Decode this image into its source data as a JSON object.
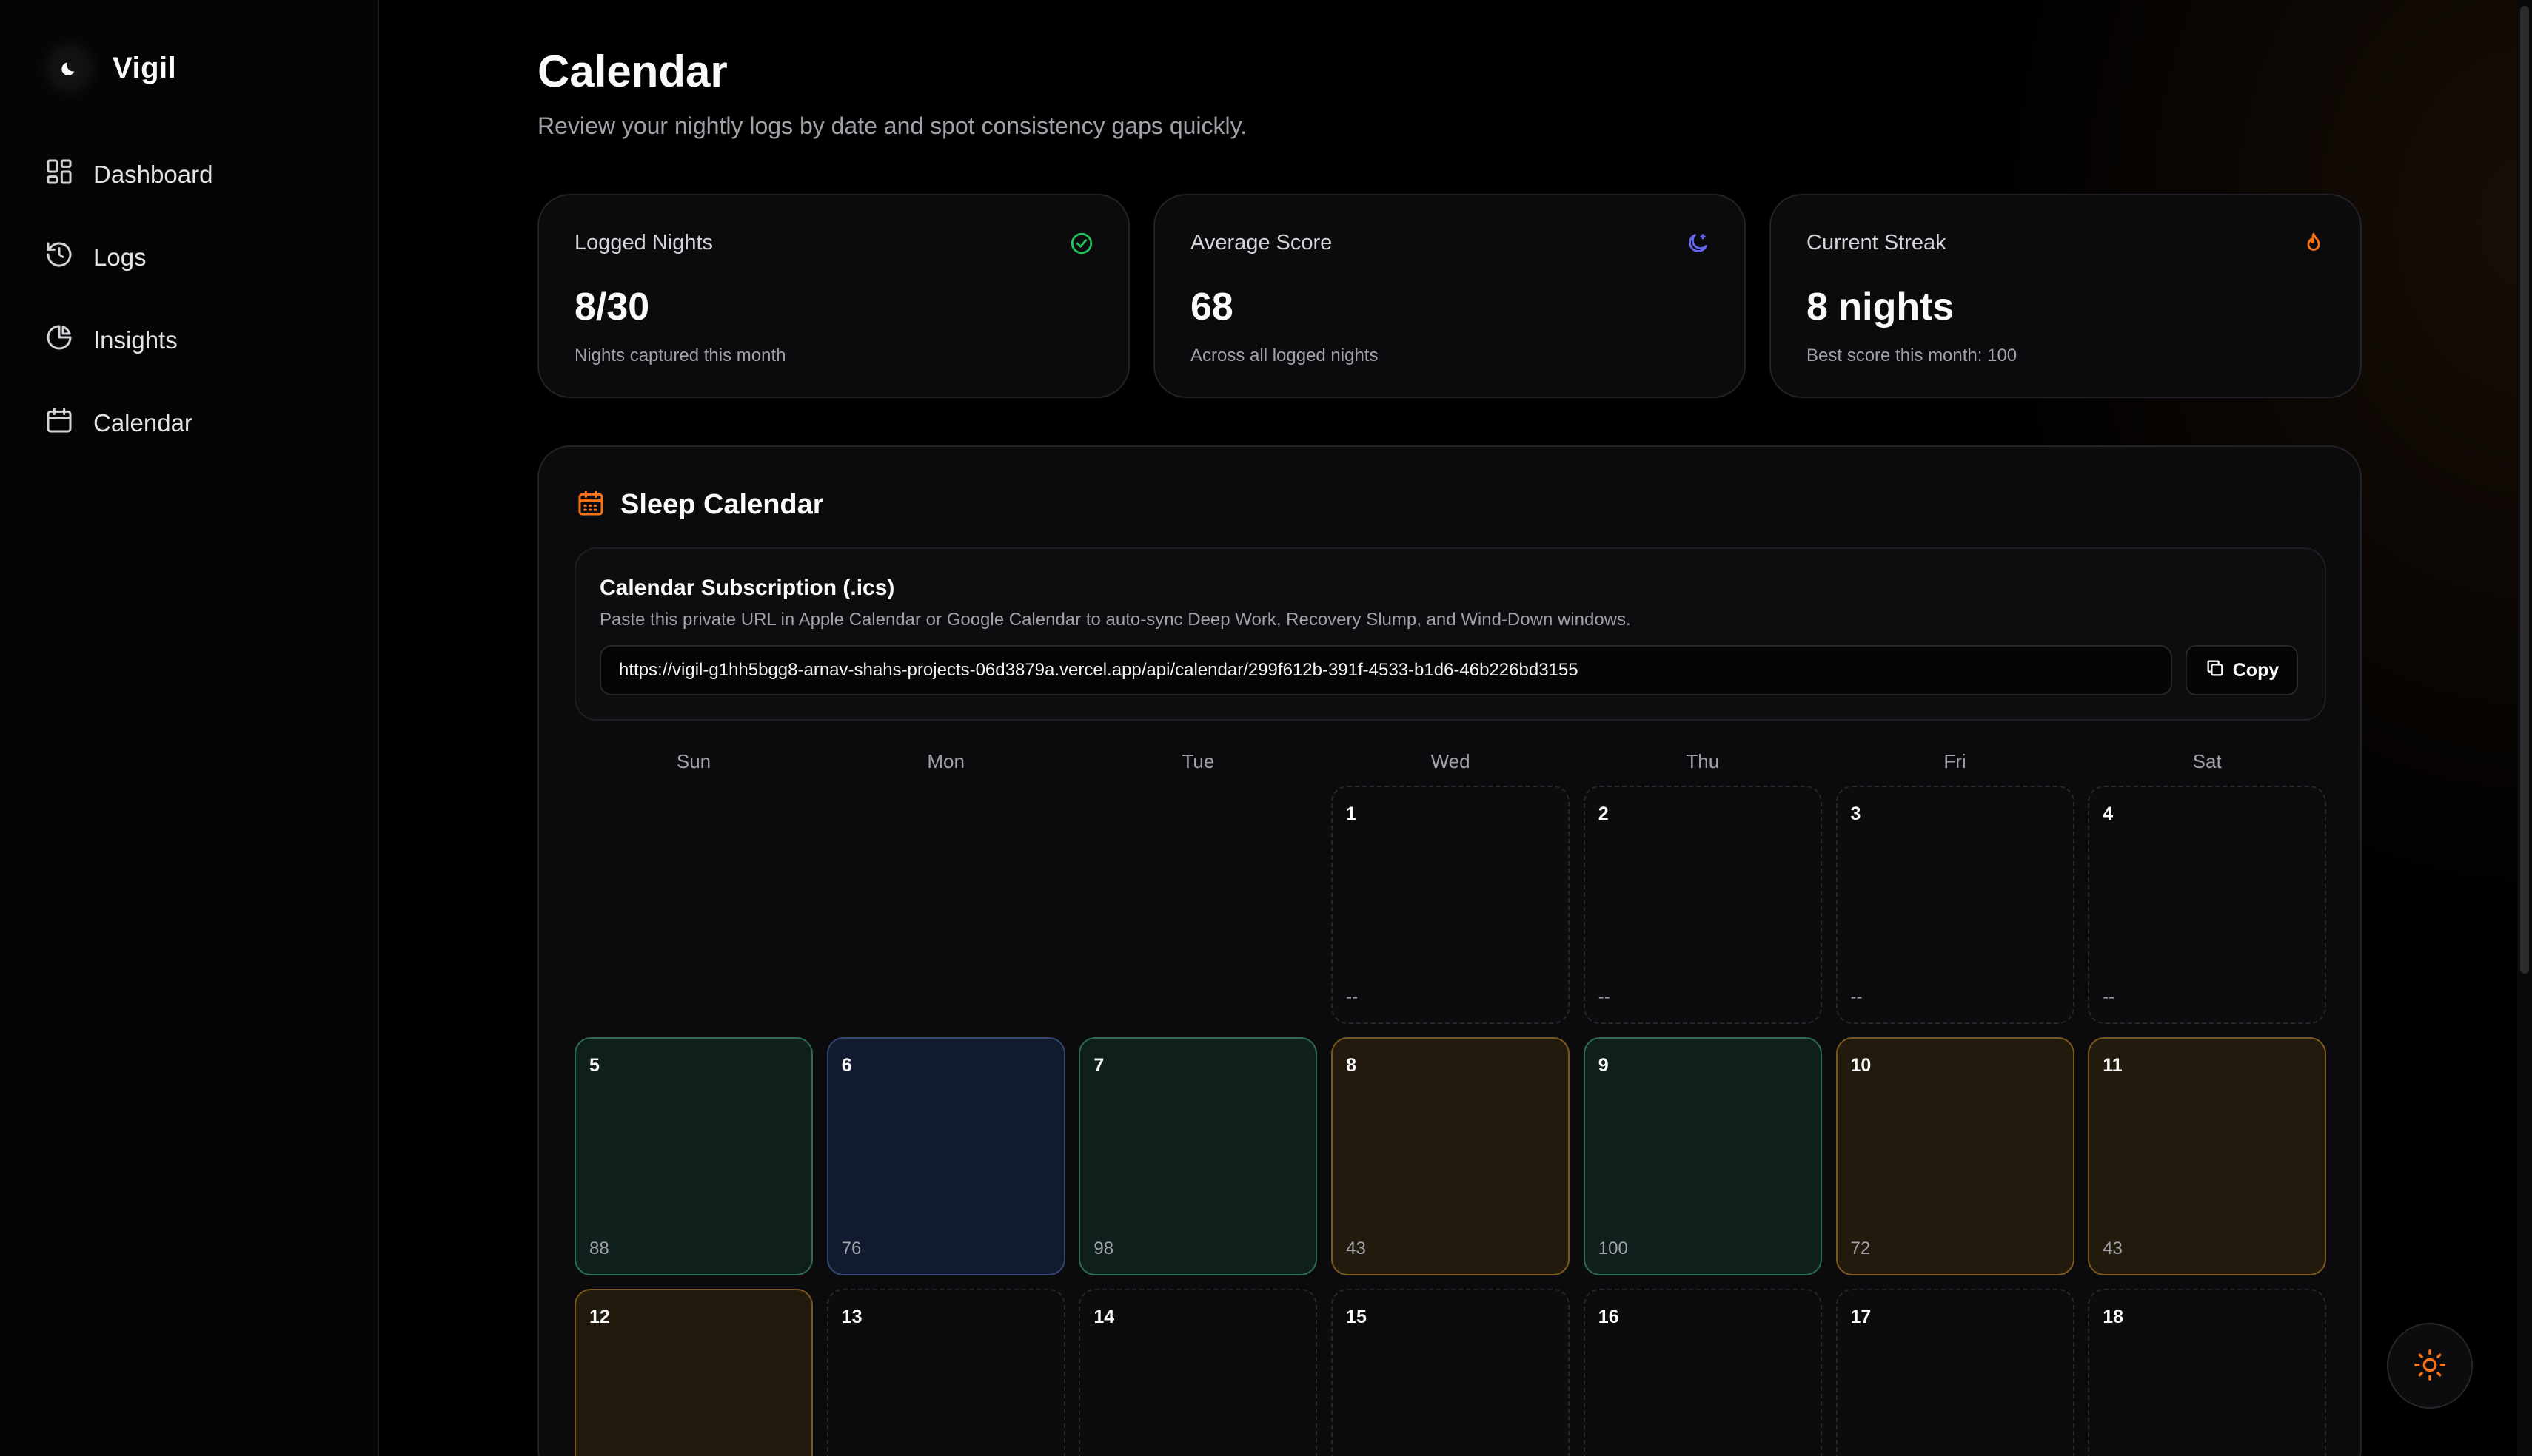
{
  "brand": {
    "name": "Vigil",
    "logo_icon": "moon-icon"
  },
  "sidebar": {
    "items": [
      {
        "label": "Dashboard",
        "icon": "dashboard-grid-icon"
      },
      {
        "label": "Logs",
        "icon": "history-icon"
      },
      {
        "label": "Insights",
        "icon": "pie-chart-icon"
      },
      {
        "label": "Calendar",
        "icon": "calendar-icon"
      }
    ]
  },
  "header": {
    "title": "Calendar",
    "subtitle": "Review your nightly logs by date and spot consistency gaps quickly."
  },
  "stats": [
    {
      "label": "Logged Nights",
      "value": "8/30",
      "note": "Nights captured this month",
      "icon": "check-circle-icon",
      "color": "#22c55e"
    },
    {
      "label": "Average Score",
      "value": "68",
      "note": "Across all logged nights",
      "icon": "moon-icon",
      "color": "#6366f1"
    },
    {
      "label": "Current Streak",
      "value": "8 nights",
      "note": "Best score this month: 100",
      "icon": "flame-icon",
      "color": "#f97316"
    }
  ],
  "calendar": {
    "title": "Sleep Calendar",
    "subscription": {
      "title": "Calendar Subscription (.ics)",
      "description": "Paste this private URL in Apple Calendar or Google Calendar to auto-sync Deep Work, Recovery Slump, and Wind-Down windows.",
      "url": "https://vigil-g1hh5bgg8-arnav-shahs-projects-06d3879a.vercel.app/api/calendar/299f612b-391f-4533-b1d6-46b226bd3155",
      "copy_label": "Copy"
    },
    "weekdays": [
      "Sun",
      "Mon",
      "Tue",
      "Wed",
      "Thu",
      "Fri",
      "Sat"
    ],
    "days": [
      {
        "day": "1",
        "score": "--",
        "status": "empty",
        "weekday_index": 3,
        "week": 0
      },
      {
        "day": "2",
        "score": "--",
        "status": "empty",
        "weekday_index": 4,
        "week": 0
      },
      {
        "day": "3",
        "score": "--",
        "status": "empty",
        "weekday_index": 5,
        "week": 0
      },
      {
        "day": "4",
        "score": "--",
        "status": "empty",
        "weekday_index": 6,
        "week": 0
      },
      {
        "day": "5",
        "score": "88",
        "status": "green",
        "weekday_index": 0,
        "week": 1
      },
      {
        "day": "6",
        "score": "76",
        "status": "blue",
        "weekday_index": 1,
        "week": 1
      },
      {
        "day": "7",
        "score": "98",
        "status": "green",
        "weekday_index": 2,
        "week": 1
      },
      {
        "day": "8",
        "score": "43",
        "status": "amber",
        "weekday_index": 3,
        "week": 1
      },
      {
        "day": "9",
        "score": "100",
        "status": "green",
        "weekday_index": 4,
        "week": 1
      },
      {
        "day": "10",
        "score": "72",
        "status": "amber",
        "weekday_index": 5,
        "week": 1
      },
      {
        "day": "11",
        "score": "43",
        "status": "amber",
        "weekday_index": 6,
        "week": 1
      },
      {
        "day": "12",
        "score": "",
        "status": "amber",
        "weekday_index": 0,
        "week": 2
      },
      {
        "day": "13",
        "score": "",
        "status": "empty",
        "weekday_index": 1,
        "week": 2
      },
      {
        "day": "14",
        "score": "",
        "status": "empty",
        "weekday_index": 2,
        "week": 2
      },
      {
        "day": "15",
        "score": "",
        "status": "empty",
        "weekday_index": 3,
        "week": 2
      },
      {
        "day": "16",
        "score": "",
        "status": "empty",
        "weekday_index": 4,
        "week": 2
      },
      {
        "day": "17",
        "score": "",
        "status": "empty",
        "weekday_index": 5,
        "week": 2
      },
      {
        "day": "18",
        "score": "",
        "status": "empty",
        "weekday_index": 6,
        "week": 2
      }
    ]
  },
  "theme_toggle": {
    "icon": "sun-icon",
    "color": "#f97316"
  }
}
